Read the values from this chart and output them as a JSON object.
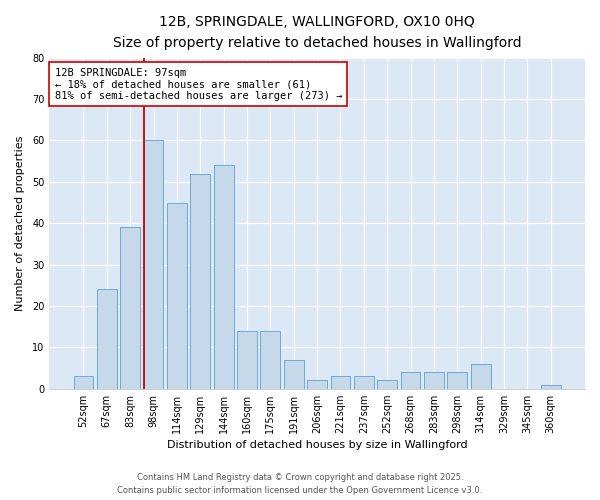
{
  "title": "12B, SPRINGDALE, WALLINGFORD, OX10 0HQ",
  "subtitle": "Size of property relative to detached houses in Wallingford",
  "xlabel": "Distribution of detached houses by size in Wallingford",
  "ylabel": "Number of detached properties",
  "categories": [
    "52sqm",
    "67sqm",
    "83sqm",
    "98sqm",
    "114sqm",
    "129sqm",
    "144sqm",
    "160sqm",
    "175sqm",
    "191sqm",
    "206sqm",
    "221sqm",
    "237sqm",
    "252sqm",
    "268sqm",
    "283sqm",
    "298sqm",
    "314sqm",
    "329sqm",
    "345sqm",
    "360sqm"
  ],
  "values": [
    3,
    24,
    39,
    60,
    45,
    52,
    54,
    14,
    14,
    7,
    2,
    3,
    3,
    2,
    4,
    4,
    4,
    6,
    0,
    0,
    1
  ],
  "bar_color": "#c5d9ea",
  "bar_edge_color": "#6aaad4",
  "vline_x_index": 3,
  "vline_color": "#cc0000",
  "annotation_line1": "12B SPRINGDALE: 97sqm",
  "annotation_line2": "← 18% of detached houses are smaller (61)",
  "annotation_line3": "81% of semi-detached houses are larger (273) →",
  "annotation_box_color": "#ffffff",
  "annotation_box_edge": "#cc0000",
  "ylim": [
    0,
    80
  ],
  "yticks": [
    0,
    10,
    20,
    30,
    40,
    50,
    60,
    70,
    80
  ],
  "bg_color": "#dce8f5",
  "footer_line1": "Contains HM Land Registry data © Crown copyright and database right 2025.",
  "footer_line2": "Contains public sector information licensed under the Open Government Licence v3.0.",
  "title_fontsize": 10,
  "subtitle_fontsize": 8.5,
  "axis_label_fontsize": 8,
  "tick_fontsize": 7,
  "annotation_fontsize": 7.5,
  "footer_fontsize": 6
}
